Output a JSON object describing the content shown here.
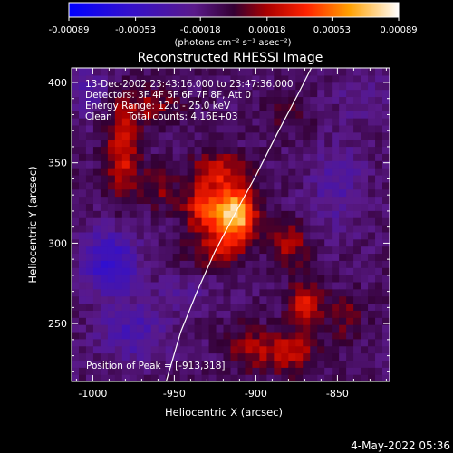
{
  "chart_data": {
    "type": "heatmap",
    "title": "Reconstructed RHESSI Image",
    "xlabel": "Heliocentric X (arcsec)",
    "ylabel": "Heliocentric Y (arcsec)",
    "xlim": [
      -1013,
      -818
    ],
    "ylim": [
      214,
      409
    ],
    "xticks": [
      -1000,
      -950,
      -900,
      -850
    ],
    "xtick_labels": [
      "-1000",
      "-950",
      "-900",
      "-850"
    ],
    "yticks": [
      250,
      300,
      350,
      400
    ],
    "ytick_labels": [
      "250",
      "300",
      "350",
      "400"
    ],
    "colorbar": {
      "range": [
        -0.00089,
        0.00089
      ],
      "tick_values": [
        -0.00089,
        -0.00053,
        -0.00018,
        0.00018,
        0.00053,
        0.00089
      ],
      "tick_labels": [
        "-0.00089",
        "-0.00053",
        "-0.00018",
        "0.00018",
        "0.00053",
        "0.00089"
      ],
      "unit_label": "(photons cm⁻² s⁻¹ asec⁻²)"
    },
    "annotations": [
      "13-Dec-2002 23:43:16.000 to 23:47:36.000",
      "Detectors: 3F 4F 5F 6F 7F 8F, Att 0",
      "Energy Range: 12.0 - 25.0 keV",
      "Clean     Total counts: 4.16E+03"
    ],
    "peak_label": "Position of Peak = [-913,318]",
    "peak": {
      "x": -913,
      "y": 318
    },
    "limb": [
      {
        "x": -955,
        "y": 214
      },
      {
        "x": -946,
        "y": 245
      },
      {
        "x": -936,
        "y": 270
      },
      {
        "x": -925,
        "y": 295
      },
      {
        "x": -913,
        "y": 318
      },
      {
        "x": -900,
        "y": 342
      },
      {
        "x": -887,
        "y": 368
      },
      {
        "x": -874,
        "y": 393
      },
      {
        "x": -866,
        "y": 409
      }
    ],
    "sources": [
      {
        "x": -913,
        "y": 318,
        "amp": 0.00089,
        "sx": 9,
        "sy": 11
      },
      {
        "x": -932,
        "y": 322,
        "amp": 0.00045,
        "sx": 9,
        "sy": 10
      },
      {
        "x": -922,
        "y": 345,
        "amp": 0.00038,
        "sx": 12,
        "sy": 8
      },
      {
        "x": -925,
        "y": 296,
        "amp": 0.0003,
        "sx": 11,
        "sy": 8
      },
      {
        "x": -982,
        "y": 355,
        "amp": 0.0004,
        "sx": 7,
        "sy": 20
      },
      {
        "x": -965,
        "y": 385,
        "amp": 0.00025,
        "sx": 14,
        "sy": 8
      },
      {
        "x": -960,
        "y": 335,
        "amp": 0.00022,
        "sx": 8,
        "sy": 9
      },
      {
        "x": -880,
        "y": 300,
        "amp": 0.0003,
        "sx": 8,
        "sy": 10
      },
      {
        "x": -870,
        "y": 262,
        "amp": 0.0004,
        "sx": 7,
        "sy": 11
      },
      {
        "x": -880,
        "y": 232,
        "amp": 0.00035,
        "sx": 12,
        "sy": 9
      },
      {
        "x": -905,
        "y": 236,
        "amp": 0.00025,
        "sx": 9,
        "sy": 10
      },
      {
        "x": -845,
        "y": 255,
        "amp": 0.0002,
        "sx": 8,
        "sy": 10
      },
      {
        "x": -880,
        "y": 380,
        "amp": 0.00015,
        "sx": 10,
        "sy": 8
      },
      {
        "x": -990,
        "y": 288,
        "amp": -0.00045,
        "sx": 12,
        "sy": 14
      },
      {
        "x": -975,
        "y": 245,
        "amp": -0.00028,
        "sx": 14,
        "sy": 12
      },
      {
        "x": -1002,
        "y": 395,
        "amp": -0.00022,
        "sx": 8,
        "sy": 10
      },
      {
        "x": -850,
        "y": 335,
        "amp": -0.0002,
        "sx": 12,
        "sy": 18
      },
      {
        "x": -945,
        "y": 268,
        "amp": -0.00015,
        "sx": 10,
        "sy": 8
      },
      {
        "x": -835,
        "y": 390,
        "amp": -0.00015,
        "sx": 10,
        "sy": 10
      }
    ],
    "grid": false
  },
  "footer_date": "4-May-2022 05:36"
}
